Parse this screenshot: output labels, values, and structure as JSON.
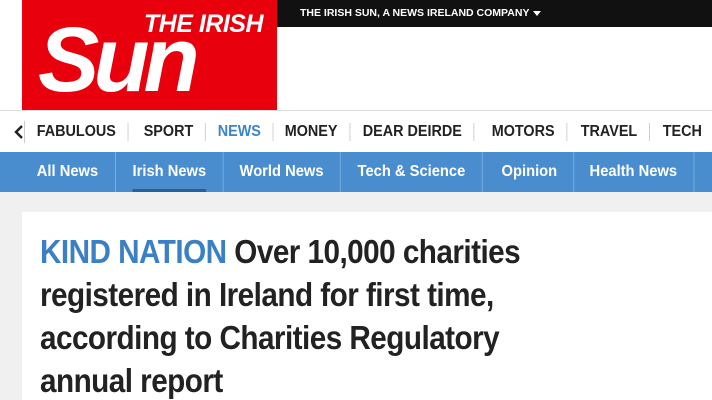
{
  "header": {
    "utility_link": "THE IRISH SUN, A NEWS IRELAND COMPANY"
  },
  "logo": {
    "line1": "THE IRISH",
    "line2": "Sun"
  },
  "nav": {
    "items": [
      "FABULOUS",
      "SPORT",
      "NEWS",
      "MONEY",
      "DEAR DEIRDE",
      "MOTORS",
      "TRAVEL",
      "TECH"
    ]
  },
  "subnav": {
    "items": [
      "All News",
      "Irish News",
      "World News",
      "Tech & Science",
      "Opinion",
      "Health News"
    ]
  },
  "article": {
    "kicker": "KIND NATION",
    "headline": "Over 10,000 charities registered in Ireland for first time, according to Charities Regulatory annual report"
  }
}
